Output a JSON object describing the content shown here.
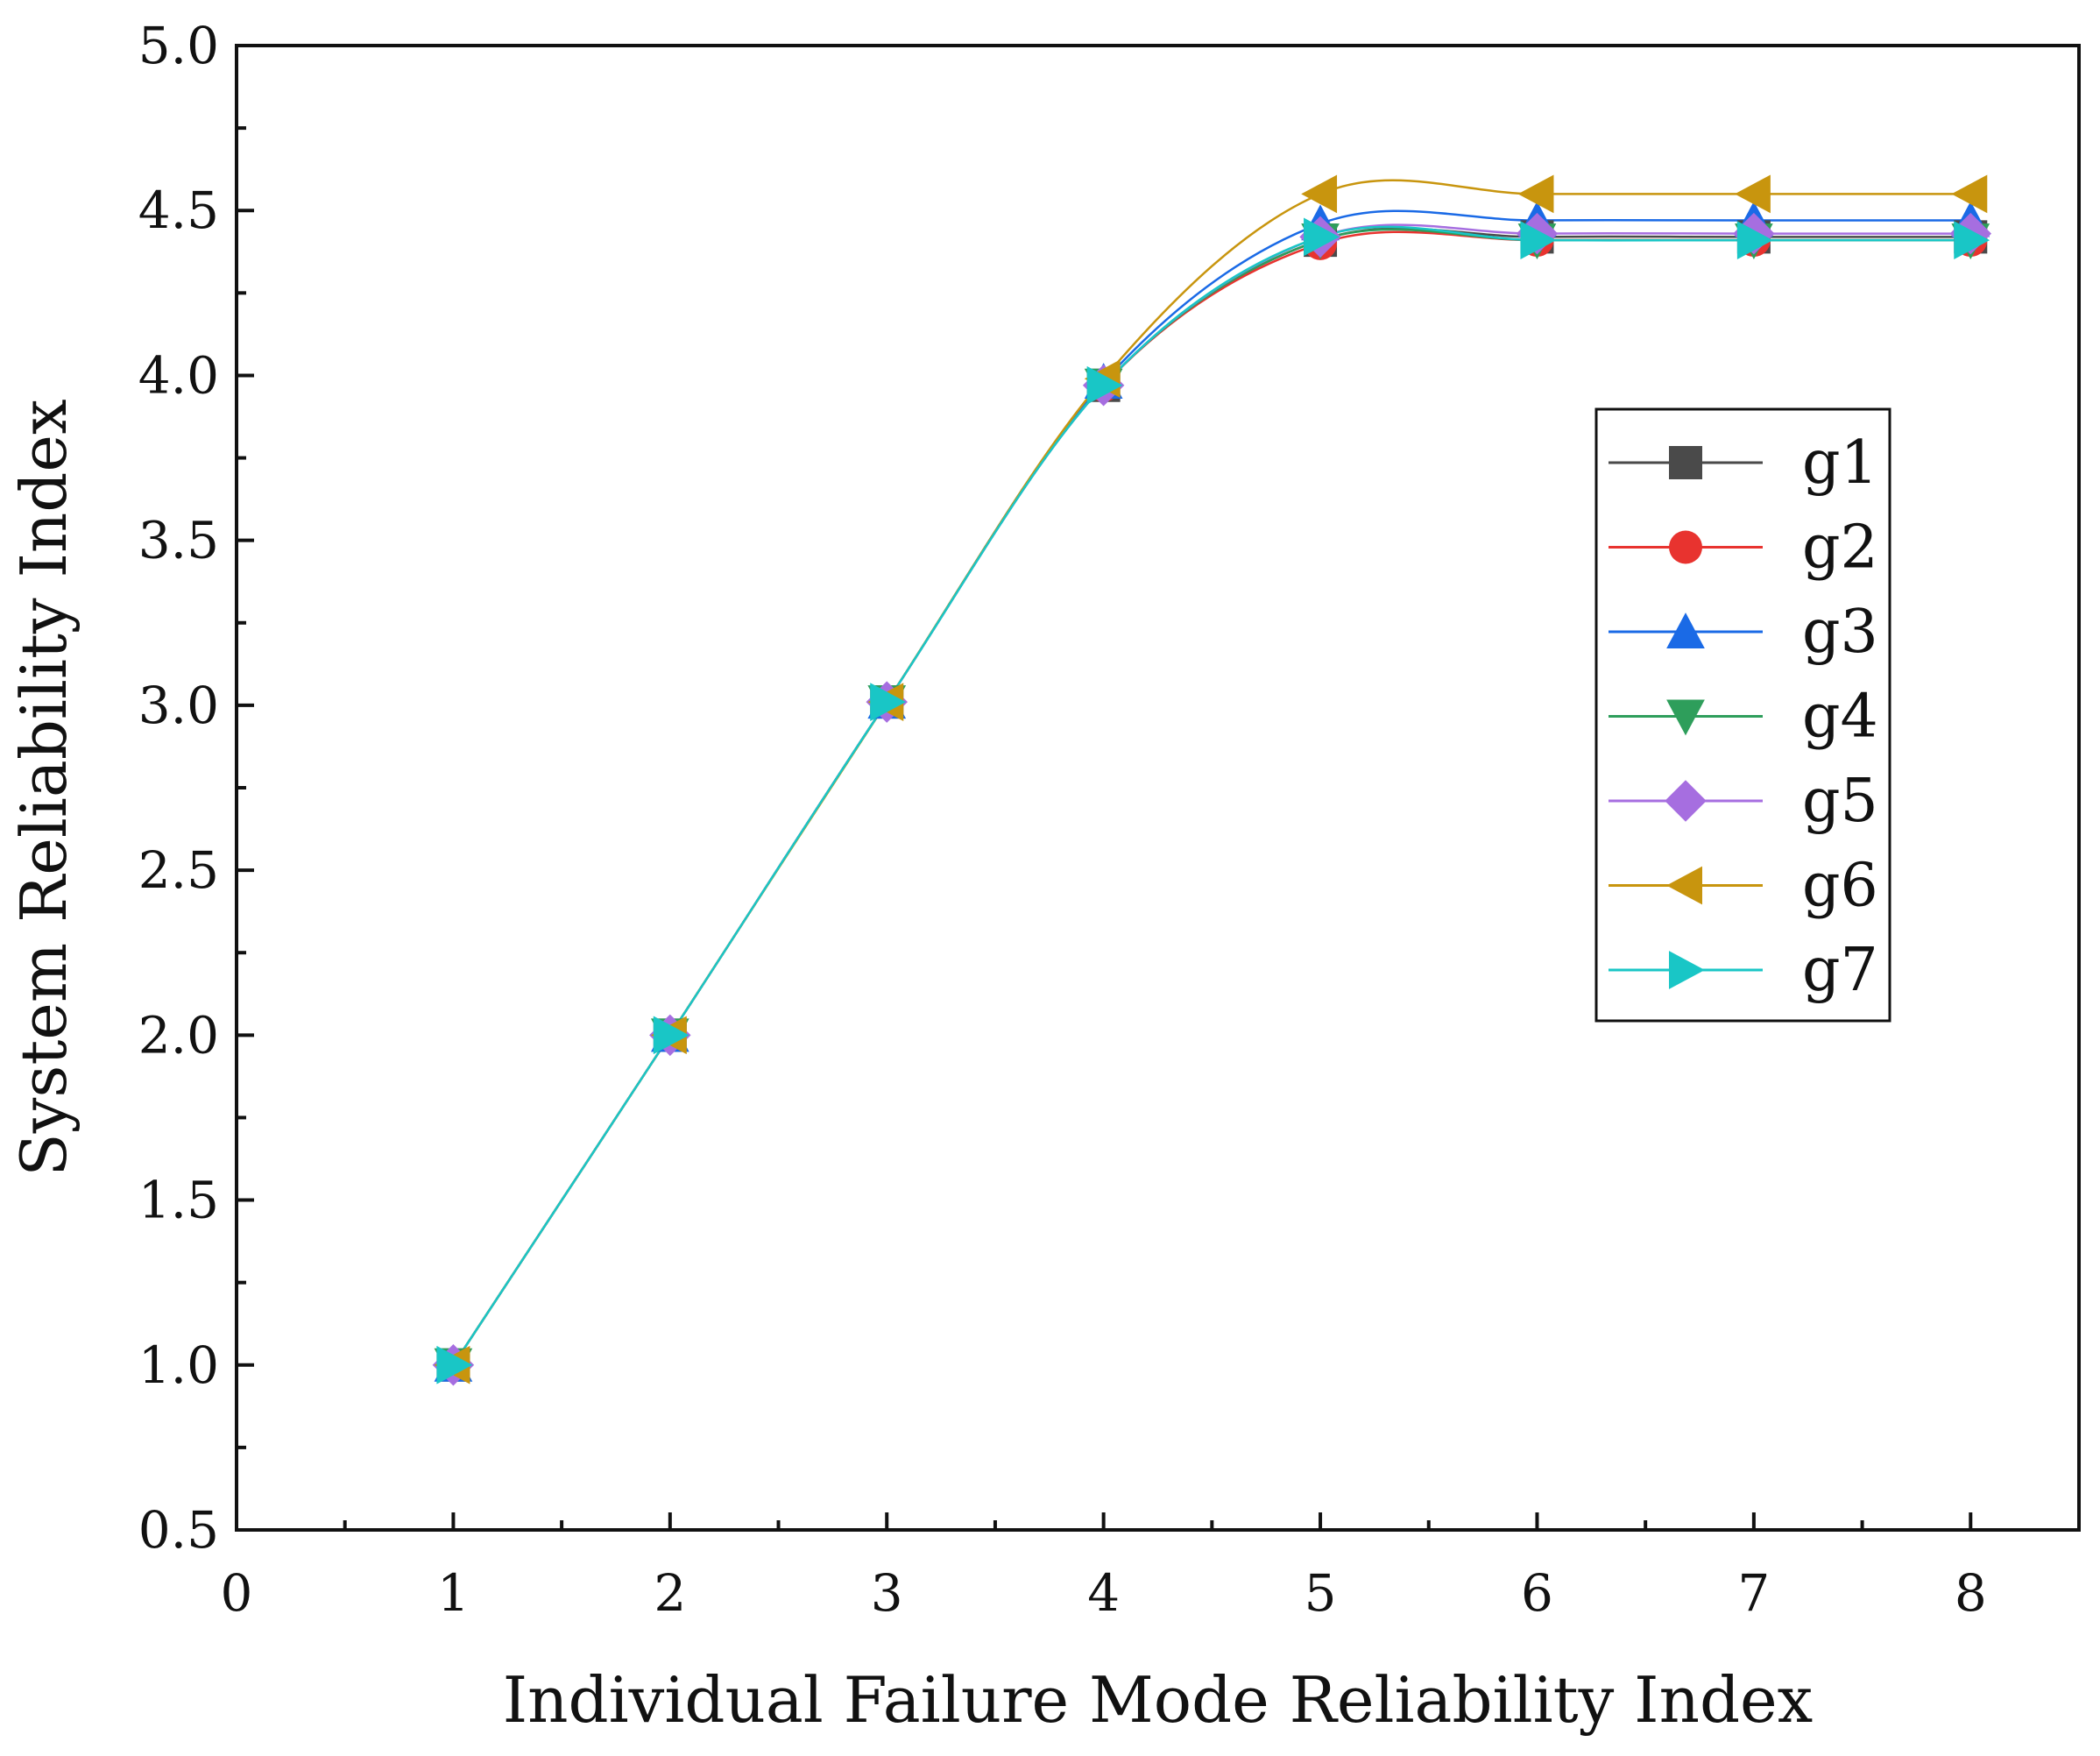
{
  "chart_data": {
    "type": "line",
    "title": "",
    "xlabel": "Individual Failure Mode Reliability Index",
    "ylabel": "System Reliability Index",
    "xlim": [
      0,
      8.5
    ],
    "ylim": [
      0.5,
      5.0
    ],
    "x_ticks": [
      "0",
      "1",
      "2",
      "3",
      "4",
      "5",
      "6",
      "7",
      "8"
    ],
    "y_ticks": [
      "0.5",
      "1.0",
      "1.5",
      "2.0",
      "2.5",
      "3.0",
      "3.5",
      "4.0",
      "4.5",
      "5.0"
    ],
    "x": [
      1,
      2,
      3,
      4,
      5,
      6,
      7,
      8
    ],
    "legend_position": "middle-right",
    "series": [
      {
        "name": "g1",
        "color": "#4a4a4a",
        "marker": "square",
        "values": [
          1.0,
          2.0,
          3.01,
          3.97,
          4.41,
          4.42,
          4.42,
          4.42
        ]
      },
      {
        "name": "g2",
        "color": "#e8332f",
        "marker": "circle",
        "values": [
          1.0,
          2.0,
          3.01,
          3.97,
          4.4,
          4.41,
          4.41,
          4.41
        ]
      },
      {
        "name": "g3",
        "color": "#1a6ae6",
        "marker": "triangle-up",
        "values": [
          1.0,
          2.0,
          3.01,
          3.98,
          4.46,
          4.47,
          4.47,
          4.47
        ]
      },
      {
        "name": "g4",
        "color": "#2e9e5b",
        "marker": "triangle-down",
        "values": [
          1.0,
          2.0,
          3.01,
          3.97,
          4.41,
          4.41,
          4.41,
          4.41
        ]
      },
      {
        "name": "g5",
        "color": "#a66ee0",
        "marker": "diamond",
        "values": [
          1.0,
          2.0,
          3.01,
          3.97,
          4.42,
          4.43,
          4.43,
          4.43
        ]
      },
      {
        "name": "g6",
        "color": "#c8950e",
        "marker": "triangle-left",
        "values": [
          1.0,
          2.0,
          3.01,
          3.99,
          4.55,
          4.55,
          4.55,
          4.55
        ]
      },
      {
        "name": "g7",
        "color": "#19c6c6",
        "marker": "triangle-right",
        "values": [
          1.0,
          2.0,
          3.01,
          3.97,
          4.42,
          4.41,
          4.41,
          4.41
        ]
      }
    ]
  }
}
